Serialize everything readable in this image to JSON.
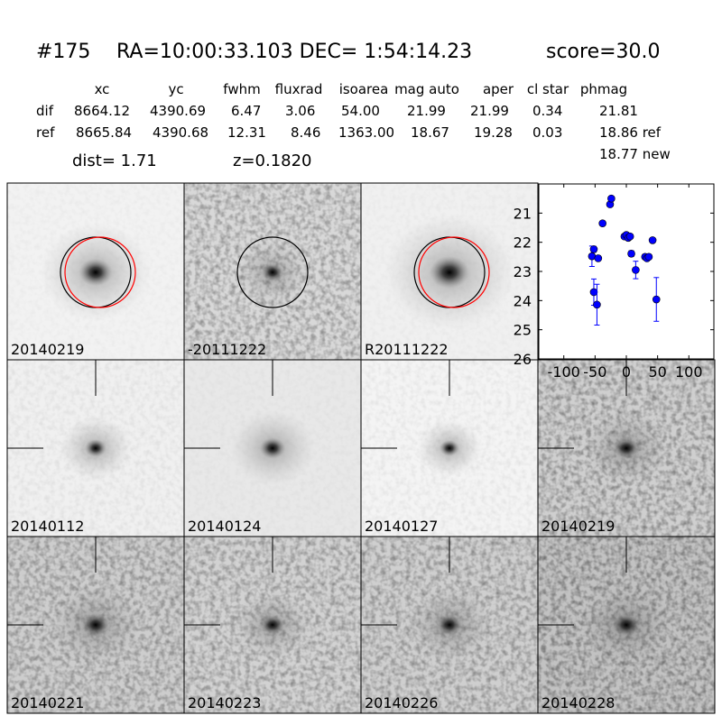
{
  "header": {
    "id": "#175",
    "coords": "RA=10:00:33.103 DEC= 1:54:14.23",
    "score": "score=30.0"
  },
  "table": {
    "columns": [
      "xc",
      "yc",
      "fwhm",
      "fluxrad",
      "isoarea",
      "mag auto",
      "aper",
      "cl star",
      "phmag"
    ],
    "rows": [
      [
        "dif",
        "8664.12",
        "4390.69",
        "6.47",
        "3.06",
        "54.00",
        "21.99",
        "21.99",
        "0.34",
        "21.81"
      ],
      [
        "ref",
        "8665.84",
        "4390.68",
        "12.31",
        "8.46",
        "1363.00",
        "18.67",
        "19.28",
        "0.03",
        "18.86 ref"
      ]
    ],
    "phmag_new": "18.77 new"
  },
  "dist": "dist=  1.71",
  "z": "z=0.1820",
  "panels": [
    {
      "label": "20140219"
    },
    {
      "label": "-20111222"
    },
    {
      "label": "R20111222"
    },
    {
      "label": "20140112"
    },
    {
      "label": "20140124"
    },
    {
      "label": "20140127"
    },
    {
      "label": "20140219",
      "label_color": "#ff0000"
    },
    {
      "label": "20140221"
    },
    {
      "label": "20140223"
    },
    {
      "label": "20140226"
    },
    {
      "label": "20140228"
    }
  ],
  "chart_data": {
    "type": "scatter",
    "color": "#0000ff",
    "x": [
      -55,
      -52,
      -52,
      -47,
      -45,
      -38,
      -26,
      -24,
      -3,
      0,
      3,
      6,
      8,
      15,
      30,
      33,
      36,
      42,
      48
    ],
    "values": [
      22.48,
      22.24,
      23.71,
      24.14,
      22.55,
      21.35,
      20.7,
      20.5,
      21.8,
      21.75,
      21.85,
      21.8,
      22.39,
      22.95,
      22.5,
      22.55,
      22.5,
      21.93,
      23.96
    ],
    "errors": [
      0.35,
      0.1,
      0.45,
      0.7,
      0.08,
      0.05,
      0.05,
      0.05,
      0.05,
      0.05,
      0.05,
      0.05,
      0.1,
      0.3,
      0.08,
      0.08,
      0.08,
      0.08,
      0.75
    ],
    "xlim": [
      -140,
      140
    ],
    "ylim": [
      26,
      20
    ],
    "xticks": [
      -100,
      -50,
      0,
      50,
      100
    ],
    "yticks": [
      21,
      22,
      23,
      24,
      25,
      26
    ]
  }
}
